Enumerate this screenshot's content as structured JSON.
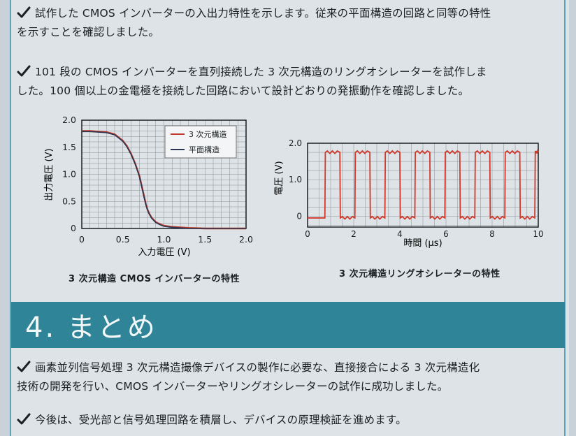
{
  "intro": {
    "para1_line1": "試作した CMOS インバーターの入出力特性を示します。従来の平面構造の回路と同等の特性",
    "para1_line2": "を示すことを確認しました。",
    "para2_line1": "101 段の CMOS インバーターを直列接続した 3 次元構造のリングオシレーターを試作しま",
    "para2_line2": "した。100 個以上の金電極を接続した回路において設計どおりの発振動作を確認しました。"
  },
  "chart_data": [
    {
      "type": "line",
      "title": "3 次元構造 CMOS インバーターの特性",
      "xlabel": "入力電圧 (V)",
      "ylabel": "出力電圧 (V)",
      "xlim": [
        0,
        2.0
      ],
      "ylim": [
        0,
        2.0
      ],
      "xticks": [
        "0",
        "0.5",
        "1.0",
        "1.5",
        "2.0"
      ],
      "yticks": [
        "0",
        "0.5",
        "1.0",
        "1.5",
        "2.0"
      ],
      "grid": true,
      "legend_position": "top-right",
      "series": [
        {
          "name": "3 次元構造",
          "color": "#c0392b",
          "x": [
            0,
            0.1,
            0.2,
            0.3,
            0.4,
            0.5,
            0.55,
            0.6,
            0.65,
            0.7,
            0.72,
            0.75,
            0.78,
            0.8,
            0.82,
            0.85,
            0.9,
            0.95,
            1.0,
            1.1,
            1.2,
            1.3,
            1.5,
            1.8,
            2.0
          ],
          "y": [
            1.8,
            1.8,
            1.79,
            1.78,
            1.74,
            1.62,
            1.52,
            1.38,
            1.2,
            0.98,
            0.85,
            0.65,
            0.45,
            0.35,
            0.28,
            0.2,
            0.12,
            0.08,
            0.05,
            0.03,
            0.02,
            0.01,
            0.0,
            0.0,
            0.0
          ]
        },
        {
          "name": "平面構造",
          "color": "#2c3550",
          "x": [
            0,
            0.1,
            0.2,
            0.3,
            0.4,
            0.5,
            0.55,
            0.6,
            0.65,
            0.7,
            0.72,
            0.75,
            0.78,
            0.8,
            0.82,
            0.85,
            0.9,
            0.95,
            1.0,
            1.1,
            1.2,
            1.3,
            1.5,
            1.8,
            2.0
          ],
          "y": [
            1.79,
            1.79,
            1.78,
            1.77,
            1.73,
            1.61,
            1.51,
            1.37,
            1.19,
            0.97,
            0.84,
            0.64,
            0.44,
            0.34,
            0.27,
            0.19,
            0.11,
            0.07,
            0.04,
            0.02,
            0.01,
            0.0,
            0.0,
            0.0,
            0.0
          ]
        }
      ]
    },
    {
      "type": "line",
      "title": "3 次元構造リングオシレーターの特性",
      "xlabel": "時間 (μs)",
      "ylabel": "電圧 (V)",
      "xlim": [
        0,
        10
      ],
      "ylim": [
        -0.3,
        2.0
      ],
      "xticks": [
        "0",
        "2",
        "4",
        "6",
        "8",
        "10"
      ],
      "yticks": [
        "0",
        "1.0",
        "2.0"
      ],
      "grid": true,
      "series": [
        {
          "color": "#d0392b",
          "period_us": 1.3,
          "first_rise_us": 0.75,
          "high_v": 1.75,
          "low_v": -0.05
        }
      ]
    }
  ],
  "section": {
    "number_title": "4. まとめ"
  },
  "summary": {
    "para1_line1": "画素並列信号処理 3 次元構造撮像デバイスの製作に必要な、直接接合による 3 次元構造化",
    "para1_line2": "技術の開発を行い、CMOS インバーターやリングオシレーターの試作に成功しました。",
    "para2_line1": "今後は、受光部と信号処理回路を積層し、デバイスの原理検証を進めます。"
  }
}
